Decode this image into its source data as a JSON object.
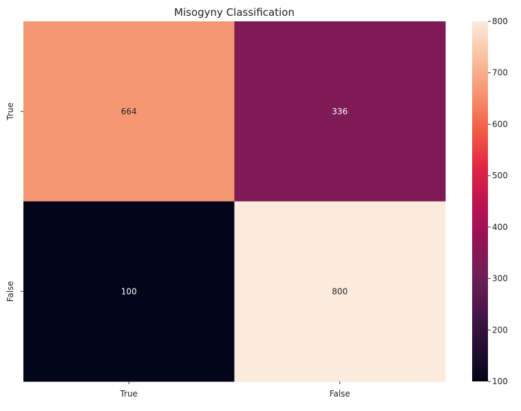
{
  "chart_data": {
    "type": "heatmap",
    "title": "Misogyny Classification",
    "xlabel": "",
    "ylabel": "",
    "x_categories": [
      "True",
      "False"
    ],
    "y_categories": [
      "True",
      "False"
    ],
    "values": [
      [
        664,
        336
      ],
      [
        100,
        800
      ]
    ],
    "colorbar": {
      "range": [
        100,
        800
      ],
      "ticks": [
        100,
        200,
        300,
        400,
        500,
        600,
        700,
        800
      ],
      "colormap": "rocket"
    },
    "grid": false,
    "legend": "none"
  }
}
